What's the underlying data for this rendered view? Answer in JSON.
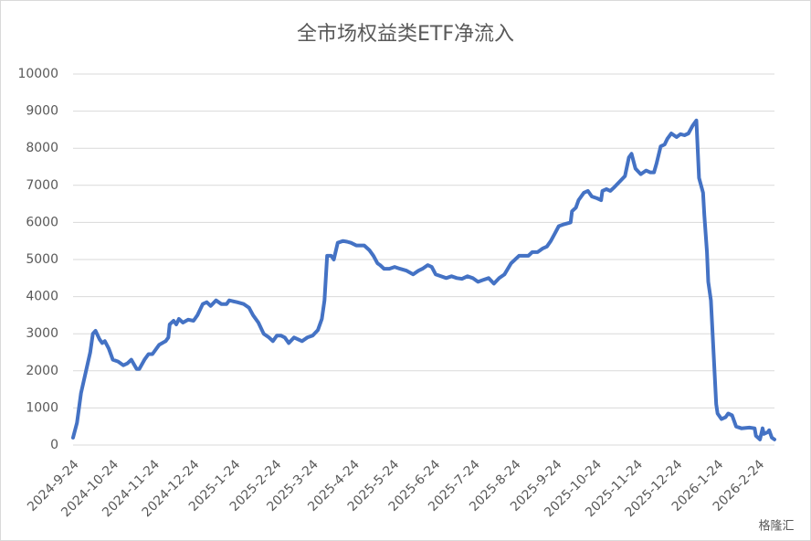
{
  "chart_data": {
    "type": "line",
    "title": "全市场权益类ETF净流入",
    "color": "#4472c4",
    "grid": true,
    "ylim": [
      0,
      10000
    ],
    "yticks": [
      0,
      1000,
      2000,
      3000,
      4000,
      5000,
      6000,
      7000,
      8000,
      9000,
      10000
    ],
    "xlim": [
      "2024-9-24",
      "2026-3-8"
    ],
    "xticks": [
      "2024-9-24",
      "2024-10-24",
      "2024-11-24",
      "2024-12-24",
      "2025-1-24",
      "2025-2-24",
      "2025-3-24",
      "2025-4-24",
      "2025-5-24",
      "2025-6-24",
      "2025-7-24",
      "2025-8-24",
      "2025-9-24",
      "2025-10-24",
      "2025-11-24",
      "2025-12-24",
      "2026-1-24",
      "2026-2-24"
    ],
    "x": [
      "2024-9-24",
      "2024-9-27",
      "2024-9-30",
      "2024-10-7",
      "2024-10-9",
      "2024-10-11",
      "2024-10-14",
      "2024-10-16",
      "2024-10-18",
      "2024-10-21",
      "2024-10-24",
      "2024-10-28",
      "2024-11-1",
      "2024-11-4",
      "2024-11-7",
      "2024-11-11",
      "2024-11-13",
      "2024-11-17",
      "2024-11-20",
      "2024-11-23",
      "2024-11-28",
      "2024-12-3",
      "2024-12-5",
      "2024-12-6",
      "2024-12-9",
      "2024-12-11",
      "2024-12-13",
      "2024-12-16",
      "2024-12-20",
      "2024-12-24",
      "2024-12-27",
      "2024-12-31",
      "2025-1-3",
      "2025-1-6",
      "2025-1-10",
      "2025-1-14",
      "2025-1-18",
      "2025-1-20",
      "2025-1-26",
      "2025-1-31",
      "2025-2-4",
      "2025-2-7",
      "2025-2-11",
      "2025-2-15",
      "2025-2-19",
      "2025-2-22",
      "2025-2-25",
      "2025-2-28",
      "2025-3-3",
      "2025-3-6",
      "2025-3-10",
      "2025-3-13",
      "2025-3-16",
      "2025-3-20",
      "2025-3-24",
      "2025-3-28",
      "2025-3-31",
      "2025-4-2",
      "2025-4-4",
      "2025-4-7",
      "2025-4-9",
      "2025-4-12",
      "2025-4-16",
      "2025-4-19",
      "2025-4-22",
      "2025-4-26",
      "2025-5-2",
      "2025-5-6",
      "2025-5-9",
      "2025-5-12",
      "2025-5-14",
      "2025-5-17",
      "2025-5-21",
      "2025-5-25",
      "2025-5-29",
      "2025-6-3",
      "2025-6-8",
      "2025-6-12",
      "2025-6-15",
      "2025-6-19",
      "2025-6-22",
      "2025-6-25",
      "2025-6-29",
      "2025-7-3",
      "2025-7-7",
      "2025-7-11",
      "2025-7-15",
      "2025-7-19",
      "2025-7-23",
      "2025-7-27",
      "2025-7-31",
      "2025-8-4",
      "2025-8-8",
      "2025-8-12",
      "2025-8-16",
      "2025-8-21",
      "2025-8-24",
      "2025-8-27",
      "2025-8-30",
      "2025-9-3",
      "2025-9-6",
      "2025-9-10",
      "2025-9-14",
      "2025-9-17",
      "2025-9-20",
      "2025-9-23",
      "2025-9-26",
      "2025-9-30",
      "2025-10-5",
      "2025-10-6",
      "2025-10-9",
      "2025-10-11",
      "2025-10-15",
      "2025-10-18",
      "2025-10-21",
      "2025-10-25",
      "2025-10-28",
      "2025-10-29",
      "2025-11-1",
      "2025-11-4",
      "2025-11-7",
      "2025-11-11",
      "2025-11-15",
      "2025-11-18",
      "2025-11-20",
      "2025-11-23",
      "2025-11-27",
      "2025-12-1",
      "2025-12-4",
      "2025-12-7",
      "2025-12-9",
      "2025-12-12",
      "2025-12-15",
      "2025-12-17",
      "2025-12-20",
      "2025-12-24",
      "2025-12-27",
      "2025-12-30",
      "2026-1-2",
      "2026-1-5",
      "2026-1-8",
      "2026-1-10",
      "2026-1-13",
      "2026-1-14",
      "2026-1-16",
      "2026-1-17",
      "2026-1-19",
      "2026-1-21",
      "2026-1-23",
      "2026-1-24",
      "2026-1-27",
      "2026-1-30",
      "2026-2-1",
      "2026-2-4",
      "2026-2-7",
      "2026-2-11",
      "2026-2-17",
      "2026-2-21",
      "2026-2-22",
      "2026-2-25",
      "2026-2-27",
      "2026-2-28",
      "2026-3-3",
      "2026-3-4",
      "2026-3-6",
      "2026-3-8"
    ],
    "values": [
      200,
      600,
      1400,
      2500,
      3000,
      3080,
      2850,
      2750,
      2800,
      2600,
      2300,
      2250,
      2150,
      2200,
      2300,
      2050,
      2050,
      2300,
      2450,
      2450,
      2700,
      2800,
      2900,
      3250,
      3350,
      3250,
      3400,
      3300,
      3380,
      3350,
      3500,
      3800,
      3850,
      3750,
      3900,
      3800,
      3800,
      3900,
      3850,
      3800,
      3700,
      3500,
      3300,
      3000,
      2900,
      2800,
      2950,
      2950,
      2900,
      2750,
      2900,
      2850,
      2800,
      2900,
      2950,
      3100,
      3400,
      3900,
      5100,
      5100,
      5000,
      5450,
      5500,
      5480,
      5450,
      5380,
      5380,
      5250,
      5100,
      4900,
      4850,
      4750,
      4750,
      4800,
      4750,
      4700,
      4600,
      4700,
      4750,
      4850,
      4800,
      4600,
      4550,
      4500,
      4550,
      4500,
      4480,
      4550,
      4500,
      4400,
      4450,
      4500,
      4350,
      4500,
      4600,
      4900,
      5000,
      5100,
      5100,
      5100,
      5200,
      5200,
      5300,
      5350,
      5500,
      5700,
      5900,
      5950,
      6000,
      6300,
      6400,
      6600,
      6800,
      6850,
      6700,
      6650,
      6600,
      6850,
      6900,
      6850,
      6950,
      7100,
      7250,
      7750,
      7850,
      7450,
      7300,
      7400,
      7350,
      7350,
      7600,
      8050,
      8100,
      8250,
      8400,
      8300,
      8380,
      8350,
      8400,
      8600,
      8750,
      7200,
      6800,
      6200,
      5200,
      4400,
      3900,
      2500,
      1100,
      850,
      700,
      750,
      850,
      800,
      500,
      450,
      470,
      450,
      250,
      150,
      450,
      300,
      350,
      400,
      200,
      150
    ]
  },
  "watermark": "格隆汇"
}
